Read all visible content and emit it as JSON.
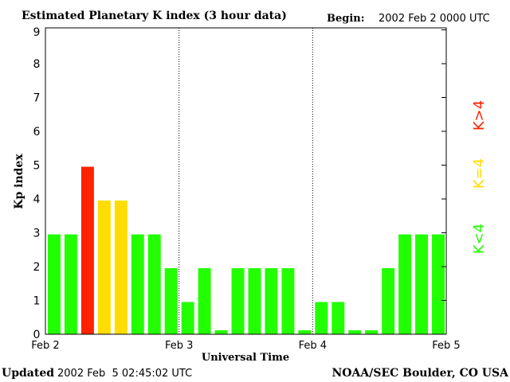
{
  "chart_data": {
    "type": "bar",
    "title": "Estimated Planetary K index (3 hour data)",
    "begin_label": "Begin:",
    "begin_value": "2002 Feb 2 0000 UTC",
    "xlabel": "Universal Time",
    "ylabel": "Kp index",
    "ylim": [
      0,
      9
    ],
    "yticks": [
      "0",
      "1",
      "2",
      "3",
      "4",
      "5",
      "6",
      "7",
      "8",
      "9"
    ],
    "xticks": [
      "Feb 2",
      "Feb 3",
      "Feb 4",
      "Feb 5"
    ],
    "values": [
      3,
      3,
      5,
      4,
      4,
      3,
      3,
      2,
      1,
      2,
      0,
      2,
      2,
      2,
      2,
      0,
      1,
      1,
      0,
      0,
      2,
      3,
      3,
      3
    ],
    "legend": [
      {
        "label": "K<4",
        "color": "#22ff00"
      },
      {
        "label": "K=4",
        "color": "#ffdd00"
      },
      {
        "label": "K>4",
        "color": "#ff2200"
      }
    ],
    "colors": {
      "low": "#22ff00",
      "mid": "#ffdd00",
      "high": "#ff2200"
    }
  },
  "footer": {
    "updated_label": "Updated",
    "updated_value": "2002 Feb  5 02:45:02 UTC",
    "source": "NOAA/SEC Boulder, CO USA"
  }
}
